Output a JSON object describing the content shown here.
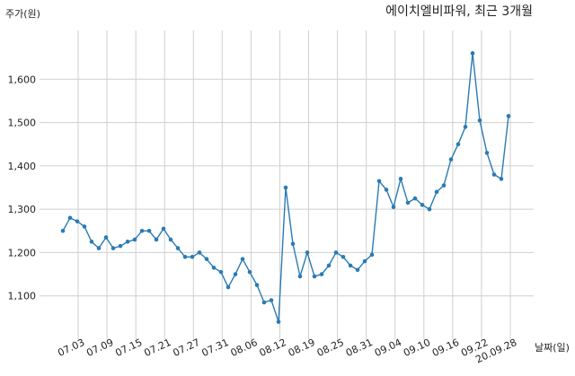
{
  "chart_data": {
    "type": "line",
    "title": "에이치엘비파워, 최근 3개월",
    "ylabel": "주가(원)",
    "xlabel": "날짜(일)",
    "ylim": [
      1000,
      1700
    ],
    "yticks": [
      1100,
      1200,
      1300,
      1400,
      1500,
      1600
    ],
    "ytick_labels": [
      "1,100",
      "1,200",
      "1,300",
      "1,400",
      "1,500",
      "1,600"
    ],
    "xticks": [
      "07.03",
      "07.09",
      "07.15",
      "07.21",
      "07.27",
      "07.31",
      "08.06",
      "08.12",
      "08.19",
      "08.25",
      "08.31",
      "09.04",
      "09.10",
      "09.16",
      "09.22",
      "20.09.28"
    ],
    "grid": true,
    "legend": "none",
    "line_color": "#2a7bb4",
    "series": [
      {
        "values": [
          1250,
          1280,
          1272,
          1260,
          1225,
          1210,
          1235,
          1210,
          1215,
          1225,
          1230,
          1250,
          1250,
          1230,
          1255,
          1230,
          1210,
          1190,
          1190,
          1200,
          1185,
          1165,
          1155,
          1120,
          1150,
          1185,
          1155,
          1125,
          1085,
          1090,
          1040,
          1350,
          1220,
          1145,
          1200,
          1145,
          1150,
          1170,
          1200,
          1190,
          1170,
          1160,
          1180,
          1195,
          1365,
          1345,
          1305,
          1370,
          1315,
          1325,
          1310,
          1300,
          1340,
          1355,
          1415,
          1450,
          1490,
          1660,
          1505,
          1430,
          1380,
          1370,
          1515
        ]
      }
    ]
  }
}
